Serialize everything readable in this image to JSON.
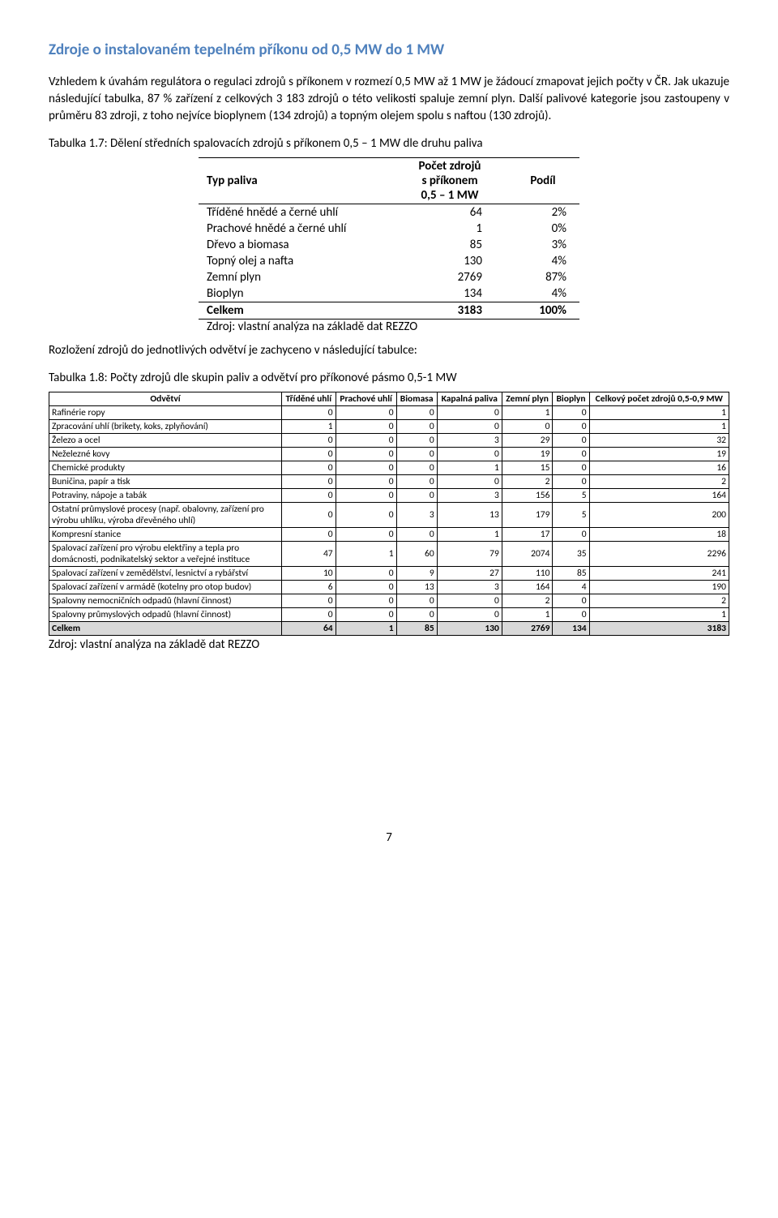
{
  "heading": "Zdroje o instalovaném tepelném příkonu od 0,5 MW do 1 MW",
  "para1": "Vzhledem k úvahám regulátora o regulaci zdrojů s příkonem v rozmezí 0,5 MW až 1 MW je žádoucí zmapovat jejich počty v ČR. Jak ukazuje následující tabulka, 87 % zařízení z celkových 3 183 zdrojů o této velikosti spaluje zemní plyn. Další palivové kategorie jsou zastoupeny v průměru 83 zdroji, z toho nejvíce bioplynem (134 zdrojů) a topným olejem spolu s naftou (130 zdrojů).",
  "caption1": "Tabulka 1.7: Dělení středních spalovacích zdrojů s příkonem 0,5 – 1 MW dle druhu paliva",
  "t1": {
    "hdr_fuel": "Typ paliva",
    "hdr_count": "Počet zdrojů s příkonem 0,5 – 1 MW",
    "hdr_count_l1": "Počet zdrojů",
    "hdr_count_l2": "s příkonem",
    "hdr_count_l3": "0,5 – 1 MW",
    "hdr_share": "Podíl",
    "rows": [
      {
        "label": "Tříděné hnědé a černé uhlí",
        "count": "64",
        "share": "2%"
      },
      {
        "label": "Prachové hnědé a černé uhlí",
        "count": "1",
        "share": "0%"
      },
      {
        "label": "Dřevo a biomasa",
        "count": "85",
        "share": "3%"
      },
      {
        "label": "Topný olej a nafta",
        "count": "130",
        "share": "4%"
      },
      {
        "label": "Zemní plyn",
        "count": "2769",
        "share": "87%"
      },
      {
        "label": "Bioplyn",
        "count": "134",
        "share": "4%"
      }
    ],
    "total_label": "Celkem",
    "total_count": "3183",
    "total_share": "100%",
    "src": "Zdroj: vlastní analýza na základě dat REZZO"
  },
  "para2": "Rozložení zdrojů do jednotlivých odvětví je zachyceno v následující tabulce:",
  "caption2": "Tabulka 1.8: Počty zdrojů dle skupin paliv a odvětví pro příkonové pásmo 0,5-1 MW",
  "t2": {
    "hdr_sector": "Odvětví",
    "hdr_c1": "Tříděné uhlí",
    "hdr_c2": "Prachové uhlí",
    "hdr_c3": "Biomasa",
    "hdr_c4": "Kapalná paliva",
    "hdr_c5": "Zemní plyn",
    "hdr_c6": "Bioplyn",
    "hdr_c7": "Celkový počet zdrojů 0,5-0,9 MW",
    "rows": [
      {
        "s": "Rafinérie ropy",
        "v": [
          "0",
          "0",
          "0",
          "0",
          "1",
          "0",
          "1"
        ]
      },
      {
        "s": "Zpracování uhlí (brikety, koks, zplyňování)",
        "v": [
          "1",
          "0",
          "0",
          "0",
          "0",
          "0",
          "1"
        ]
      },
      {
        "s": "Železo a ocel",
        "v": [
          "0",
          "0",
          "0",
          "3",
          "29",
          "0",
          "32"
        ]
      },
      {
        "s": "Neželezné kovy",
        "v": [
          "0",
          "0",
          "0",
          "0",
          "19",
          "0",
          "19"
        ]
      },
      {
        "s": "Chemické produkty",
        "v": [
          "0",
          "0",
          "0",
          "1",
          "15",
          "0",
          "16"
        ]
      },
      {
        "s": "Buničina, papír a tisk",
        "v": [
          "0",
          "0",
          "0",
          "0",
          "2",
          "0",
          "2"
        ]
      },
      {
        "s": "Potraviny, nápoje a tabák",
        "v": [
          "0",
          "0",
          "0",
          "3",
          "156",
          "5",
          "164"
        ]
      },
      {
        "s": "Ostatní průmyslové procesy (např. obalovny, zařízení pro výrobu uhlíku, výroba dřevěného uhlí)",
        "v": [
          "0",
          "0",
          "3",
          "13",
          "179",
          "5",
          "200"
        ]
      },
      {
        "s": "Kompresní stanice",
        "v": [
          "0",
          "0",
          "0",
          "1",
          "17",
          "0",
          "18"
        ]
      },
      {
        "s": "Spalovací zařízení pro výrobu elektřiny a tepla pro domácnosti, podnikatelský sektor a veřejné instituce",
        "v": [
          "47",
          "1",
          "60",
          "79",
          "2074",
          "35",
          "2296"
        ]
      },
      {
        "s": "Spalovací zařízení v zemědělství, lesnictví a rybářství",
        "v": [
          "10",
          "0",
          "9",
          "27",
          "110",
          "85",
          "241"
        ]
      },
      {
        "s": "Spalovací zařízení v armádě (kotelny pro otop budov)",
        "v": [
          "6",
          "0",
          "13",
          "3",
          "164",
          "4",
          "190"
        ]
      },
      {
        "s": "Spalovny nemocničních odpadů (hlavní činnost)",
        "v": [
          "0",
          "0",
          "0",
          "0",
          "2",
          "0",
          "2"
        ]
      },
      {
        "s": "Spalovny průmyslových odpadů (hlavní činnost)",
        "v": [
          "0",
          "0",
          "0",
          "0",
          "1",
          "0",
          "1"
        ]
      }
    ],
    "total_label": "Celkem",
    "total_v": [
      "64",
      "1",
      "85",
      "130",
      "2769",
      "134",
      "3183"
    ],
    "src": "Zdroj: vlastní analýza na základě dat REZZO"
  },
  "page_num": "7"
}
